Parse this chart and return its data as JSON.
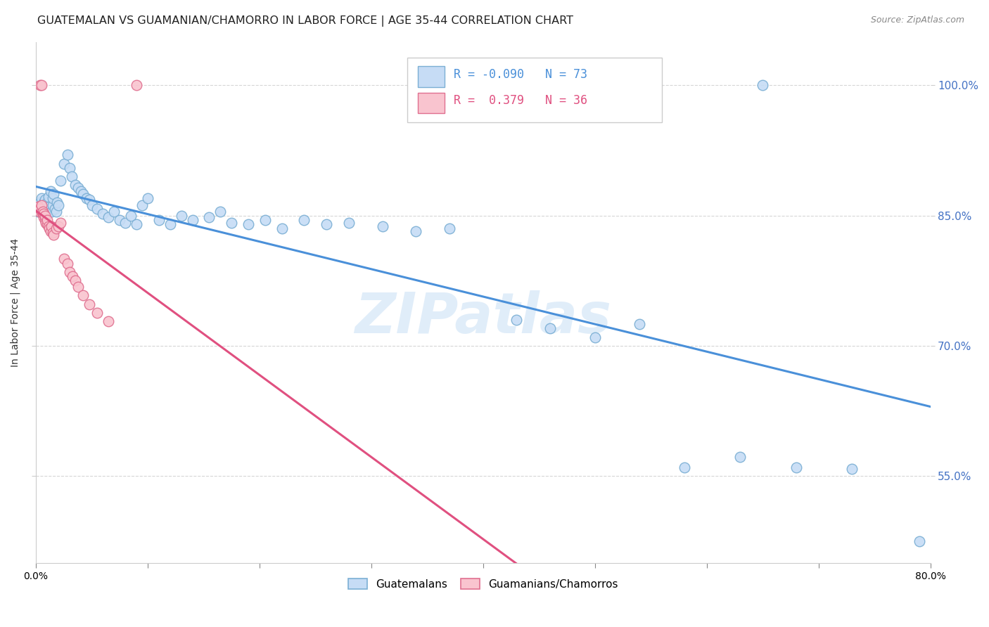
{
  "title": "GUATEMALAN VS GUAMANIAN/CHAMORRO IN LABOR FORCE | AGE 35-44 CORRELATION CHART",
  "source": "Source: ZipAtlas.com",
  "ylabel": "In Labor Force | Age 35-44",
  "xlim": [
    0.0,
    0.8
  ],
  "ylim": [
    0.45,
    1.05
  ],
  "R_blue": -0.09,
  "N_blue": 73,
  "R_pink": 0.379,
  "N_pink": 36,
  "blue_face": "#c6dcf5",
  "blue_edge": "#7bafd4",
  "pink_face": "#f9c4cf",
  "pink_edge": "#e07090",
  "blue_line": "#4a90d9",
  "pink_line": "#e05080",
  "legend_blue": "Guatemalans",
  "legend_pink": "Guamanians/Chamorros",
  "watermark": "ZIPatlas",
  "grid_color": "#cccccc",
  "right_tick_color": "#4472c4",
  "ytick_vals": [
    0.55,
    0.7,
    0.85,
    1.0
  ],
  "ytick_labels": [
    "55.0%",
    "70.0%",
    "85.0%",
    "100.0%"
  ],
  "xtick_vals": [
    0.0,
    0.1,
    0.2,
    0.3,
    0.4,
    0.5,
    0.6,
    0.7,
    0.8
  ],
  "xtick_labels": [
    "0.0%",
    "",
    "",
    "",
    "",
    "",
    "",
    "",
    "80.0%"
  ]
}
